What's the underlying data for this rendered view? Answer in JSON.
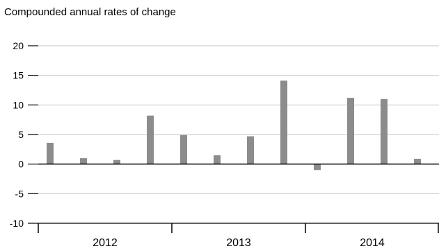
{
  "chart_data": {
    "type": "bar",
    "subtitle": "Compounded annual rates of change",
    "years": [
      "2012",
      "2013",
      "2014"
    ],
    "quarters_per_year": 4,
    "values": [
      3.6,
      1.0,
      0.7,
      8.2,
      4.9,
      1.5,
      4.7,
      14.1,
      -1.0,
      11.2,
      11.0,
      0.9
    ],
    "ylim": [
      -10,
      20
    ],
    "yticks": [
      20,
      15,
      10,
      5,
      0,
      -5,
      -10
    ],
    "grid": true,
    "bar_color": "#8c8c8c"
  }
}
